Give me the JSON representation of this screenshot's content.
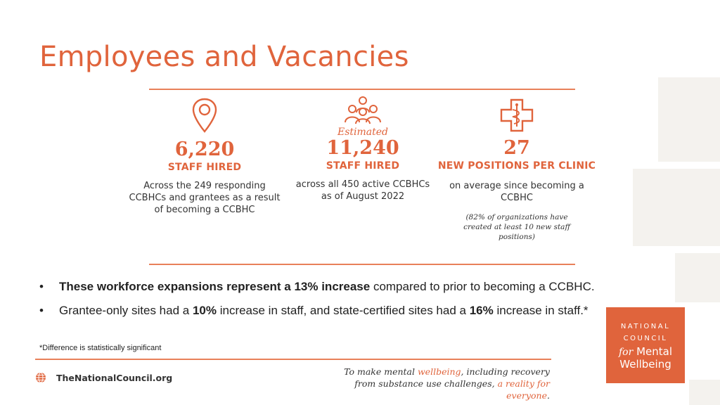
{
  "title": "Employees and Vacancies",
  "stats": [
    {
      "icon": "location-pin-icon",
      "prefix": "",
      "value": "6,220",
      "label": "STAFF HIRED",
      "description": "Across the 249 responding CCBHCs and grantees as a result of becoming a CCBHC",
      "note": ""
    },
    {
      "icon": "people-group-icon",
      "prefix": "Estimated",
      "value": "11,240",
      "label": "STAFF HIRED",
      "description": "across all 450 active CCBHCs as of August 2022",
      "note": ""
    },
    {
      "icon": "medical-cross-icon",
      "prefix": "",
      "value": "27",
      "label": "NEW POSITIONS PER CLINIC",
      "description": "on average since becoming a CCBHC",
      "note": "(82% of organizations have created at least 10 new staff positions)"
    }
  ],
  "bullets": {
    "b1": {
      "bold": "These workforce expansions represent a 13% increase",
      "rest": " compared to prior to becoming a CCBHC."
    },
    "b2": {
      "t1": "Grantee-only sites had a ",
      "b1": "10%",
      "t2": " increase in staff, and state-certified sites had a ",
      "b2": "16%",
      "t3": " increase in staff.*"
    }
  },
  "footnote": "*Difference is statistically significant",
  "footer": {
    "site": "TheNationalCouncil.org",
    "tagline": {
      "p1": "To make mental ",
      "hl1": "wellbeing",
      "p2": ", including recovery from substance use challenges, ",
      "hl2": "a reality for everyone",
      "p3": "."
    }
  },
  "logo": {
    "line1": "NATIONAL",
    "line2": "COUNCIL",
    "for": "for",
    "line3": "Mental",
    "line4": "Wellbeing"
  },
  "colors": {
    "accent": "#e0643c",
    "rule": "#e8805a",
    "decor": "#f4f2ee"
  }
}
